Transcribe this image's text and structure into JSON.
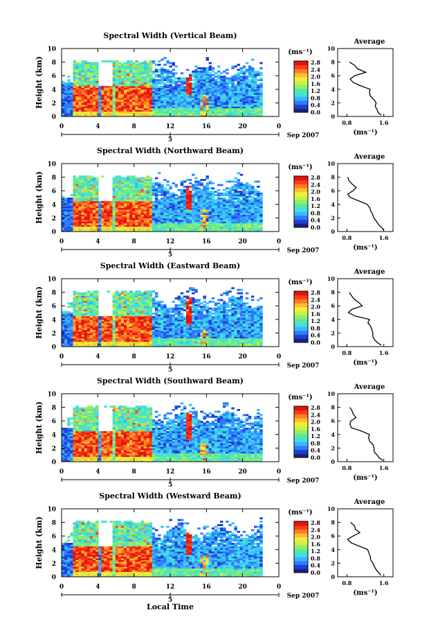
{
  "x_axis_label": "Local Time",
  "date_label": "Sep 2007",
  "day_label": "5",
  "units_label": "(ms⁻¹)",
  "avg_title": "Average",
  "avg_units": "(ms⁻¹)",
  "y_axis_label": "Height (km)",
  "colormap": [
    "#1a237e",
    "#1f3fd6",
    "#2e7bff",
    "#38b8ff",
    "#43e0e0",
    "#57e6a4",
    "#8ef06a",
    "#c8f24a",
    "#f2ee3c",
    "#ffbe2e",
    "#ff7e22",
    "#ff3d1c",
    "#e3140e"
  ],
  "colorbar_ticks": [
    "0.0",
    "0.4",
    "0.8",
    "1.2",
    "1.6",
    "2.0",
    "2.4",
    "2.8"
  ],
  "panels": [
    {
      "title": "Spectral Width (Vertical Beam)",
      "avg_xticks": [
        "0.8",
        "1.6"
      ],
      "avg_xlim": [
        0.6,
        1.8
      ],
      "chart_data": {
        "type": "heatmap",
        "x": "Local Time (h)",
        "y": "Height (km)",
        "xlim": [
          0,
          24
        ],
        "ylim": [
          0,
          10
        ],
        "x_ticks": [
          "0",
          "4",
          "8",
          "12",
          "16",
          "20",
          "0"
        ],
        "y_ticks": [
          "0",
          "2",
          "4",
          "6",
          "8",
          "10"
        ],
        "colorbar_range": [
          0.0,
          2.8
        ],
        "avg_profile": {
          "height_km": [
            0.2,
            0.5,
            1,
            1.5,
            2,
            2.5,
            3,
            3.5,
            4,
            4.5,
            5,
            5.5,
            6,
            6.5,
            7,
            7.5,
            8
          ],
          "width_ms": [
            1.55,
            1.5,
            1.45,
            1.4,
            1.42,
            1.38,
            1.32,
            1.28,
            1.3,
            1.12,
            0.95,
            0.85,
            0.95,
            1.2,
            1.05,
            0.95,
            0.85
          ]
        }
      }
    },
    {
      "title": "Spectral Width (Northward Beam)",
      "avg_xticks": [
        "0.8",
        "1.6"
      ],
      "avg_xlim": [
        0.6,
        1.8
      ],
      "chart_data": {
        "type": "heatmap",
        "x": "Local Time (h)",
        "y": "Height (km)",
        "xlim": [
          0,
          24
        ],
        "ylim": [
          0,
          10
        ],
        "x_ticks": [
          "0",
          "4",
          "8",
          "12",
          "16",
          "20",
          "0"
        ],
        "y_ticks": [
          "0",
          "2",
          "4",
          "6",
          "8",
          "10"
        ],
        "colorbar_range": [
          0.0,
          2.8
        ],
        "avg_profile": {
          "height_km": [
            0.2,
            0.5,
            1,
            1.5,
            2,
            2.5,
            3,
            3.5,
            4,
            4.5,
            5,
            5.5,
            6,
            6.5,
            7,
            7.5,
            8
          ],
          "width_ms": [
            1.6,
            1.55,
            1.48,
            1.42,
            1.38,
            1.35,
            1.3,
            1.28,
            1.25,
            1.05,
            0.9,
            0.82,
            0.92,
            1.0,
            0.9,
            0.85,
            0.8
          ]
        }
      }
    },
    {
      "title": "Spectral Width (Eastward Beam)",
      "avg_xticks": [
        "0.8",
        "1.6"
      ],
      "avg_xlim": [
        0.6,
        1.8
      ],
      "chart_data": {
        "type": "heatmap",
        "x": "Local Time (h)",
        "y": "Height (km)",
        "xlim": [
          0,
          24
        ],
        "ylim": [
          0,
          10
        ],
        "x_ticks": [
          "0",
          "4",
          "8",
          "12",
          "16",
          "20",
          "0"
        ],
        "y_ticks": [
          "0",
          "2",
          "4",
          "6",
          "8",
          "10"
        ],
        "colorbar_range": [
          0.0,
          2.8
        ],
        "avg_profile": {
          "height_km": [
            0.2,
            0.5,
            1,
            1.5,
            2,
            2.5,
            3,
            3.5,
            4,
            4.5,
            5,
            5.5,
            6,
            6.5,
            7,
            7.5,
            8
          ],
          "width_ms": [
            1.55,
            1.5,
            1.4,
            1.38,
            1.35,
            1.36,
            1.3,
            1.25,
            1.28,
            1.0,
            0.85,
            0.9,
            1.15,
            1.05,
            0.95,
            0.9,
            0.85
          ]
        }
      }
    },
    {
      "title": "Spectral Width (Southward Beam)",
      "avg_xticks": [
        "0.8",
        "1.6"
      ],
      "avg_xlim": [
        0.6,
        1.8
      ],
      "chart_data": {
        "type": "heatmap",
        "x": "Local Time (h)",
        "y": "Height (km)",
        "xlim": [
          0,
          24
        ],
        "ylim": [
          0,
          10
        ],
        "x_ticks": [
          "0",
          "4",
          "8",
          "12",
          "16",
          "20",
          "0"
        ],
        "y_ticks": [
          "0",
          "2",
          "4",
          "6",
          "8",
          "10"
        ],
        "colorbar_range": [
          0.0,
          2.8
        ],
        "avg_profile": {
          "height_km": [
            0.2,
            0.5,
            1,
            1.5,
            2,
            2.5,
            3,
            3.5,
            4,
            4.5,
            5,
            5.5,
            6,
            6.5,
            7,
            7.5,
            8
          ],
          "width_ms": [
            1.6,
            1.52,
            1.45,
            1.4,
            1.38,
            1.35,
            1.3,
            1.28,
            1.3,
            1.1,
            0.9,
            0.85,
            0.9,
            1.0,
            0.95,
            0.9,
            0.85
          ]
        }
      }
    },
    {
      "title": "Spectral Width (Westward Beam)",
      "avg_xticks": [
        "0.8",
        "1.6"
      ],
      "avg_xlim": [
        0.6,
        1.8
      ],
      "chart_data": {
        "type": "heatmap",
        "x": "Local Time (h)",
        "y": "Height (km)",
        "xlim": [
          0,
          24
        ],
        "ylim": [
          0,
          10
        ],
        "x_ticks": [
          "0",
          "4",
          "8",
          "12",
          "16",
          "20",
          "0"
        ],
        "y_ticks": [
          "0",
          "2",
          "4",
          "6",
          "8",
          "10"
        ],
        "colorbar_range": [
          0.0,
          2.8
        ],
        "avg_profile": {
          "height_km": [
            0.2,
            0.5,
            1,
            1.5,
            2,
            2.5,
            3,
            3.5,
            4,
            4.5,
            5,
            5.5,
            6,
            6.5,
            7,
            7.5,
            8
          ],
          "width_ms": [
            1.55,
            1.5,
            1.42,
            1.38,
            1.35,
            1.33,
            1.3,
            1.28,
            1.25,
            1.05,
            0.88,
            0.82,
            0.95,
            1.1,
            1.0,
            0.95,
            0.9
          ]
        }
      }
    }
  ]
}
